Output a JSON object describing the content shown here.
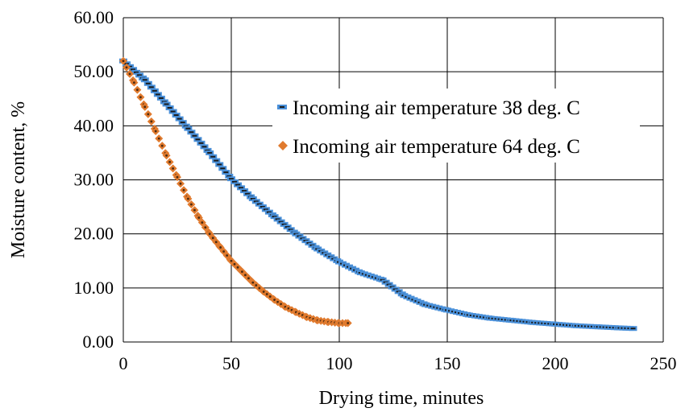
{
  "chart_data": {
    "type": "scatter",
    "xlabel": "Drying time, minutes",
    "ylabel": "Moisture content, %",
    "xlim": [
      0,
      250
    ],
    "ylim": [
      0,
      60
    ],
    "x_ticks": [
      "0",
      "50",
      "100",
      "150",
      "200",
      "250"
    ],
    "y_ticks": [
      "0.00",
      "10.00",
      "20.00",
      "30.00",
      "40.00",
      "50.00",
      "60.00"
    ],
    "grid": true,
    "legend_position": "right-middle",
    "series": [
      {
        "name": "Incoming air temperature 38 deg. C",
        "color": "#4a90d9",
        "marker": "dash",
        "x": [
          0,
          10,
          20,
          30,
          40,
          50,
          60,
          70,
          80,
          90,
          100,
          110,
          120,
          130,
          140,
          150,
          160,
          170,
          180,
          190,
          200,
          210,
          220,
          230,
          236
        ],
        "y": [
          52.0,
          48.5,
          44.0,
          39.5,
          35.0,
          30.2,
          26.5,
          23.2,
          20.0,
          17.2,
          14.8,
          12.8,
          11.5,
          8.6,
          6.9,
          5.9,
          5.0,
          4.4,
          4.0,
          3.6,
          3.3,
          3.0,
          2.8,
          2.6,
          2.5
        ]
      },
      {
        "name": "Incoming air temperature 64 deg. C",
        "color": "#e07a2e",
        "marker": "diamond",
        "x": [
          0,
          5,
          10,
          15,
          20,
          25,
          30,
          35,
          40,
          45,
          50,
          55,
          60,
          65,
          70,
          75,
          80,
          85,
          90,
          95,
          100,
          104
        ],
        "y": [
          52.0,
          48.0,
          43.5,
          39.0,
          34.5,
          30.5,
          26.5,
          23.0,
          20.0,
          17.5,
          15.0,
          13.0,
          11.0,
          9.3,
          7.8,
          6.5,
          5.5,
          4.6,
          4.0,
          3.7,
          3.5,
          3.5
        ]
      }
    ]
  }
}
